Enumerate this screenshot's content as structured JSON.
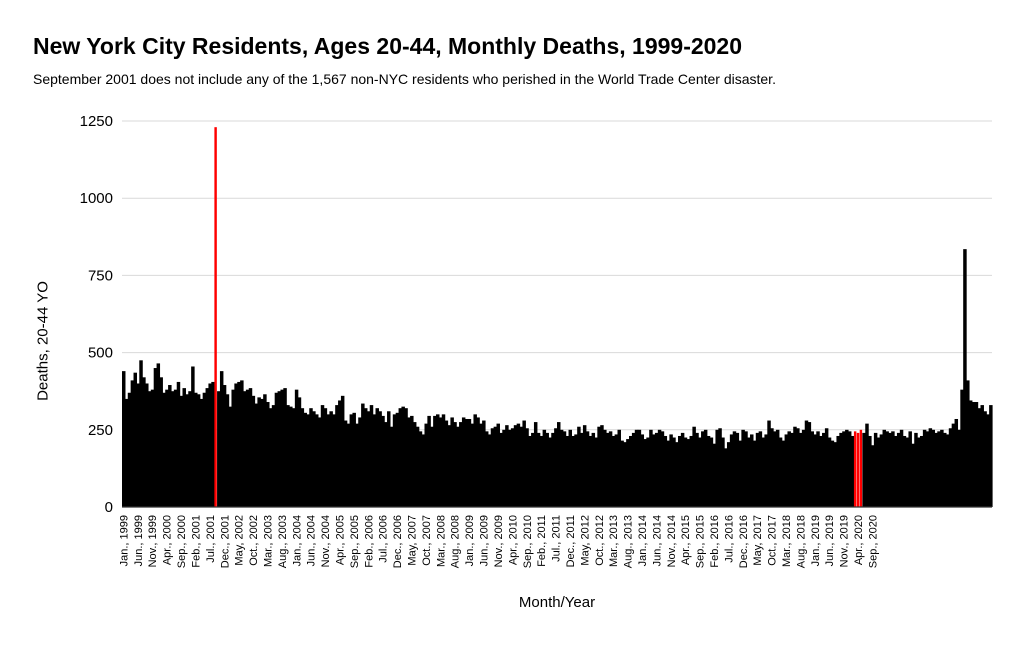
{
  "header": {
    "title": "New York City Residents, Ages 20-44, Monthly Deaths, 1999-2020",
    "subtitle": "September 2001 does not include any of the 1,567 non-NYC residents who perished in the World Trade Center disaster."
  },
  "colors": {
    "bar": "#000000",
    "highlight": "#ff0000",
    "grid": "#d9d9d9",
    "axis": "#333333"
  },
  "chart_data": {
    "type": "bar",
    "title": "New York City Residents, Ages 20-44, Monthly Deaths, 1999-2020",
    "subtitle": "September 2001 does not include any of the 1,567 non-NYC residents who perished in the World Trade Center disaster.",
    "xlabel": "Month/Year",
    "ylabel": "Deaths, 20-44 YO",
    "ylim": [
      0,
      1250
    ],
    "yticks": [
      0,
      250,
      500,
      750,
      1000,
      1250
    ],
    "grid": true,
    "legend": "none",
    "start": "1999-01",
    "end": "2020-12",
    "x_tick_labels": [
      "Jan., 1999",
      "Jun., 1999",
      "Nov., 1999",
      "Apr., 2000",
      "Sep., 2000",
      "Feb., 2001",
      "Jul., 2001",
      "Dec., 2001",
      "May, 2002",
      "Oct., 2002",
      "Mar., 2003",
      "Aug., 2003",
      "Jan., 2004",
      "Jun., 2004",
      "Nov., 2004",
      "Apr., 2005",
      "Sep., 2005",
      "Feb., 2006",
      "Jul., 2006",
      "Dec., 2006",
      "May, 2007",
      "Oct., 2007",
      "Mar., 2008",
      "Aug., 2008",
      "Jan., 2009",
      "Jun., 2009",
      "Nov., 2009",
      "Apr., 2010",
      "Sep., 2010",
      "Feb., 2011",
      "Jul., 2011",
      "Dec., 2011",
      "May, 2012",
      "Oct., 2012",
      "Mar., 2013",
      "Aug., 2013",
      "Jan., 2014",
      "Jun., 2014",
      "Nov., 2014",
      "Apr., 2015",
      "Sep., 2015",
      "Feb., 2016",
      "Jul., 2016",
      "Dec., 2016",
      "May, 2017",
      "Oct., 2017",
      "Mar., 2018",
      "Aug., 2018",
      "Jan., 2019",
      "Jun., 2019",
      "Nov., 2019",
      "Apr., 2020",
      "Sep., 2020"
    ],
    "series": [
      {
        "values": [
          440,
          350,
          370,
          410,
          435,
          400,
          475,
          420,
          400,
          375,
          380,
          450,
          465,
          420,
          370,
          380,
          395,
          375,
          380,
          405,
          360,
          385,
          365,
          375,
          455,
          370,
          365,
          350,
          370,
          385,
          400,
          405,
          1230,
          375,
          440,
          395,
          365,
          325,
          380,
          400,
          405,
          410,
          375,
          380,
          385,
          360,
          335,
          355,
          350,
          365,
          340,
          320,
          330,
          370,
          375,
          380,
          385,
          330,
          325,
          320,
          380,
          355,
          320,
          305,
          300,
          320,
          310,
          300,
          290,
          330,
          320,
          300,
          310,
          300,
          330,
          345,
          360,
          280,
          270,
          300,
          305,
          270,
          290,
          335,
          320,
          310,
          330,
          300,
          320,
          310,
          295,
          275,
          310,
          260,
          300,
          305,
          320,
          325,
          320,
          290,
          295,
          275,
          260,
          245,
          235,
          270,
          295,
          260,
          295,
          300,
          290,
          300,
          280,
          265,
          290,
          275,
          260,
          275,
          290,
          285,
          285,
          270,
          300,
          290,
          270,
          280,
          245,
          235,
          255,
          260,
          270,
          240,
          250,
          265,
          250,
          255,
          265,
          270,
          260,
          280,
          255,
          230,
          240,
          275,
          240,
          230,
          250,
          240,
          225,
          240,
          255,
          275,
          250,
          245,
          230,
          250,
          230,
          235,
          260,
          240,
          265,
          245,
          230,
          240,
          225,
          260,
          265,
          250,
          240,
          245,
          230,
          235,
          250,
          215,
          210,
          220,
          230,
          240,
          250,
          250,
          235,
          220,
          225,
          250,
          235,
          240,
          250,
          245,
          230,
          215,
          235,
          225,
          210,
          230,
          240,
          225,
          220,
          230,
          260,
          240,
          225,
          245,
          250,
          230,
          225,
          205,
          250,
          255,
          225,
          190,
          210,
          235,
          245,
          240,
          215,
          250,
          245,
          225,
          235,
          215,
          240,
          245,
          225,
          235,
          280,
          255,
          245,
          250,
          225,
          215,
          235,
          245,
          240,
          260,
          255,
          240,
          250,
          280,
          275,
          245,
          235,
          245,
          230,
          240,
          255,
          225,
          215,
          210,
          230,
          240,
          245,
          250,
          245,
          230,
          245,
          240,
          250,
          240,
          270,
          230,
          200,
          240,
          225,
          235,
          250,
          245,
          240,
          245,
          230,
          240,
          250,
          230,
          225,
          245,
          205,
          240,
          225,
          230,
          250,
          245,
          255,
          250,
          240,
          245,
          250,
          240,
          235,
          255,
          270,
          285,
          250,
          380,
          835,
          410,
          345,
          340,
          340,
          320,
          330,
          310,
          300,
          330
        ]
      }
    ],
    "highlights": [
      "2001-09",
      "2020-03",
      "2020-04",
      "2020-05"
    ]
  }
}
